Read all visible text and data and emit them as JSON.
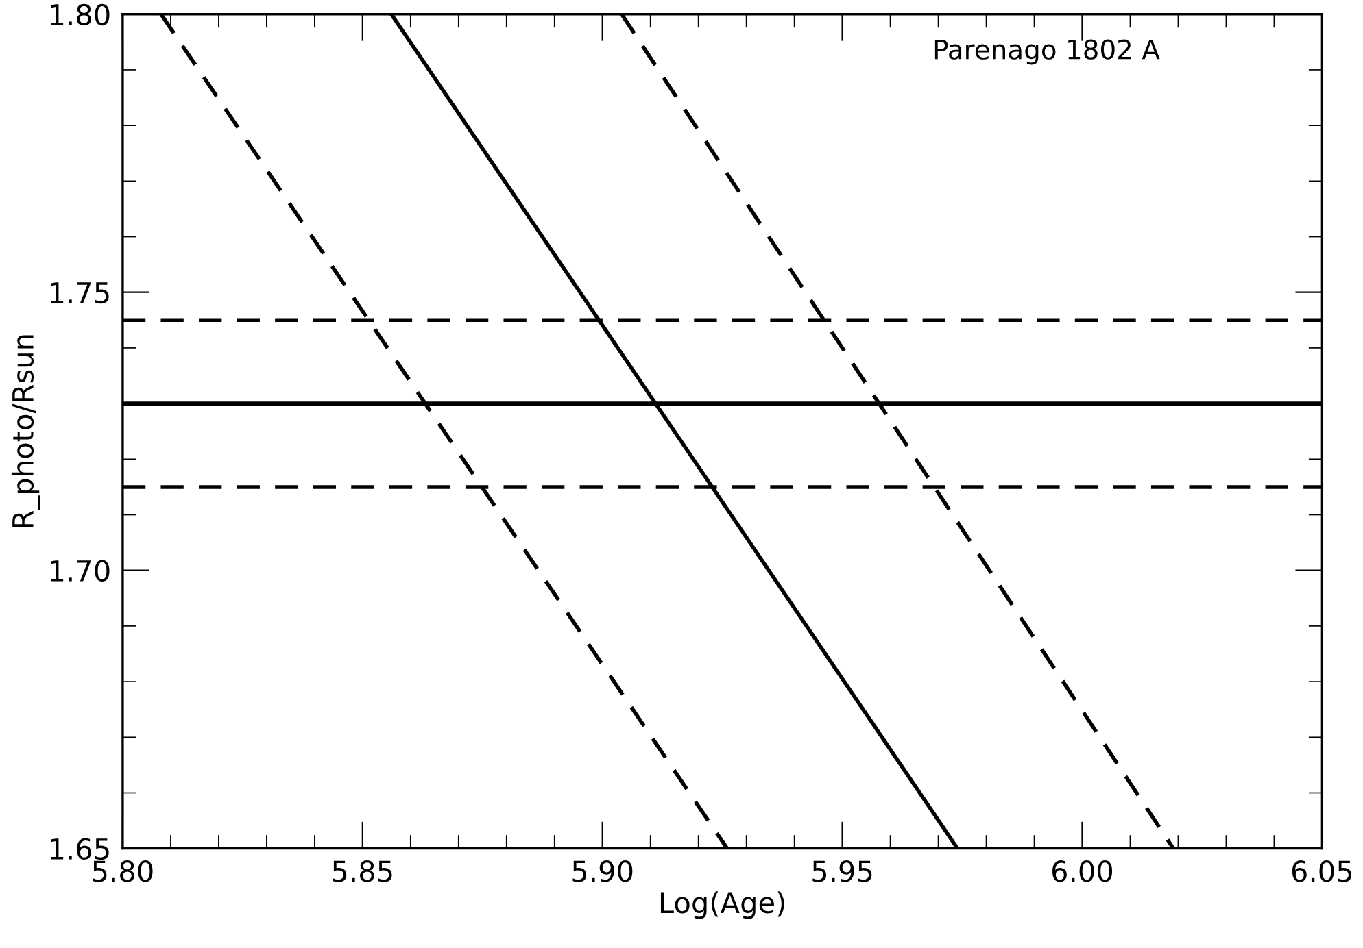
{
  "chart_data": {
    "type": "line",
    "xlabel": "Log(Age)",
    "ylabel": "R_photo/Rsun",
    "annotations": [
      "Parenago 1802 A"
    ],
    "series": [
      {
        "color": "#000000",
        "line_style": "solid",
        "x": [
          5.856,
          5.974
        ],
        "values": [
          1.8,
          1.65
        ]
      },
      {
        "color": "#000000",
        "line_style": "dashed",
        "x": [
          5.808,
          5.926
        ],
        "values": [
          1.8,
          1.65
        ]
      },
      {
        "color": "#000000",
        "line_style": "dashed",
        "x": [
          5.904,
          6.019
        ],
        "values": [
          1.8,
          1.65
        ]
      }
    ],
    "ref_lines": [
      {
        "axis": "y",
        "value": 1.73,
        "color": "#000000",
        "line_style": "solid"
      },
      {
        "axis": "y",
        "value": 1.745,
        "color": "#000000",
        "line_style": "dashed"
      },
      {
        "axis": "y",
        "value": 1.715,
        "color": "#000000",
        "line_style": "dashed"
      }
    ],
    "xlim": [
      5.8,
      6.05
    ],
    "ylim": [
      1.65,
      1.8
    ],
    "xticks": [
      {
        "value": 5.8,
        "label": "5.80"
      },
      5.85,
      {
        "value": 5.9,
        "label": "5.90"
      },
      5.95,
      {
        "value": 6.0,
        "label": "6.00"
      },
      6.05
    ],
    "yticks": [
      1.65,
      {
        "value": 1.7,
        "label": "1.70"
      },
      1.75,
      {
        "value": 1.8,
        "label": "1.80"
      }
    ],
    "grid": false,
    "legend": false,
    "marker": "none"
  }
}
